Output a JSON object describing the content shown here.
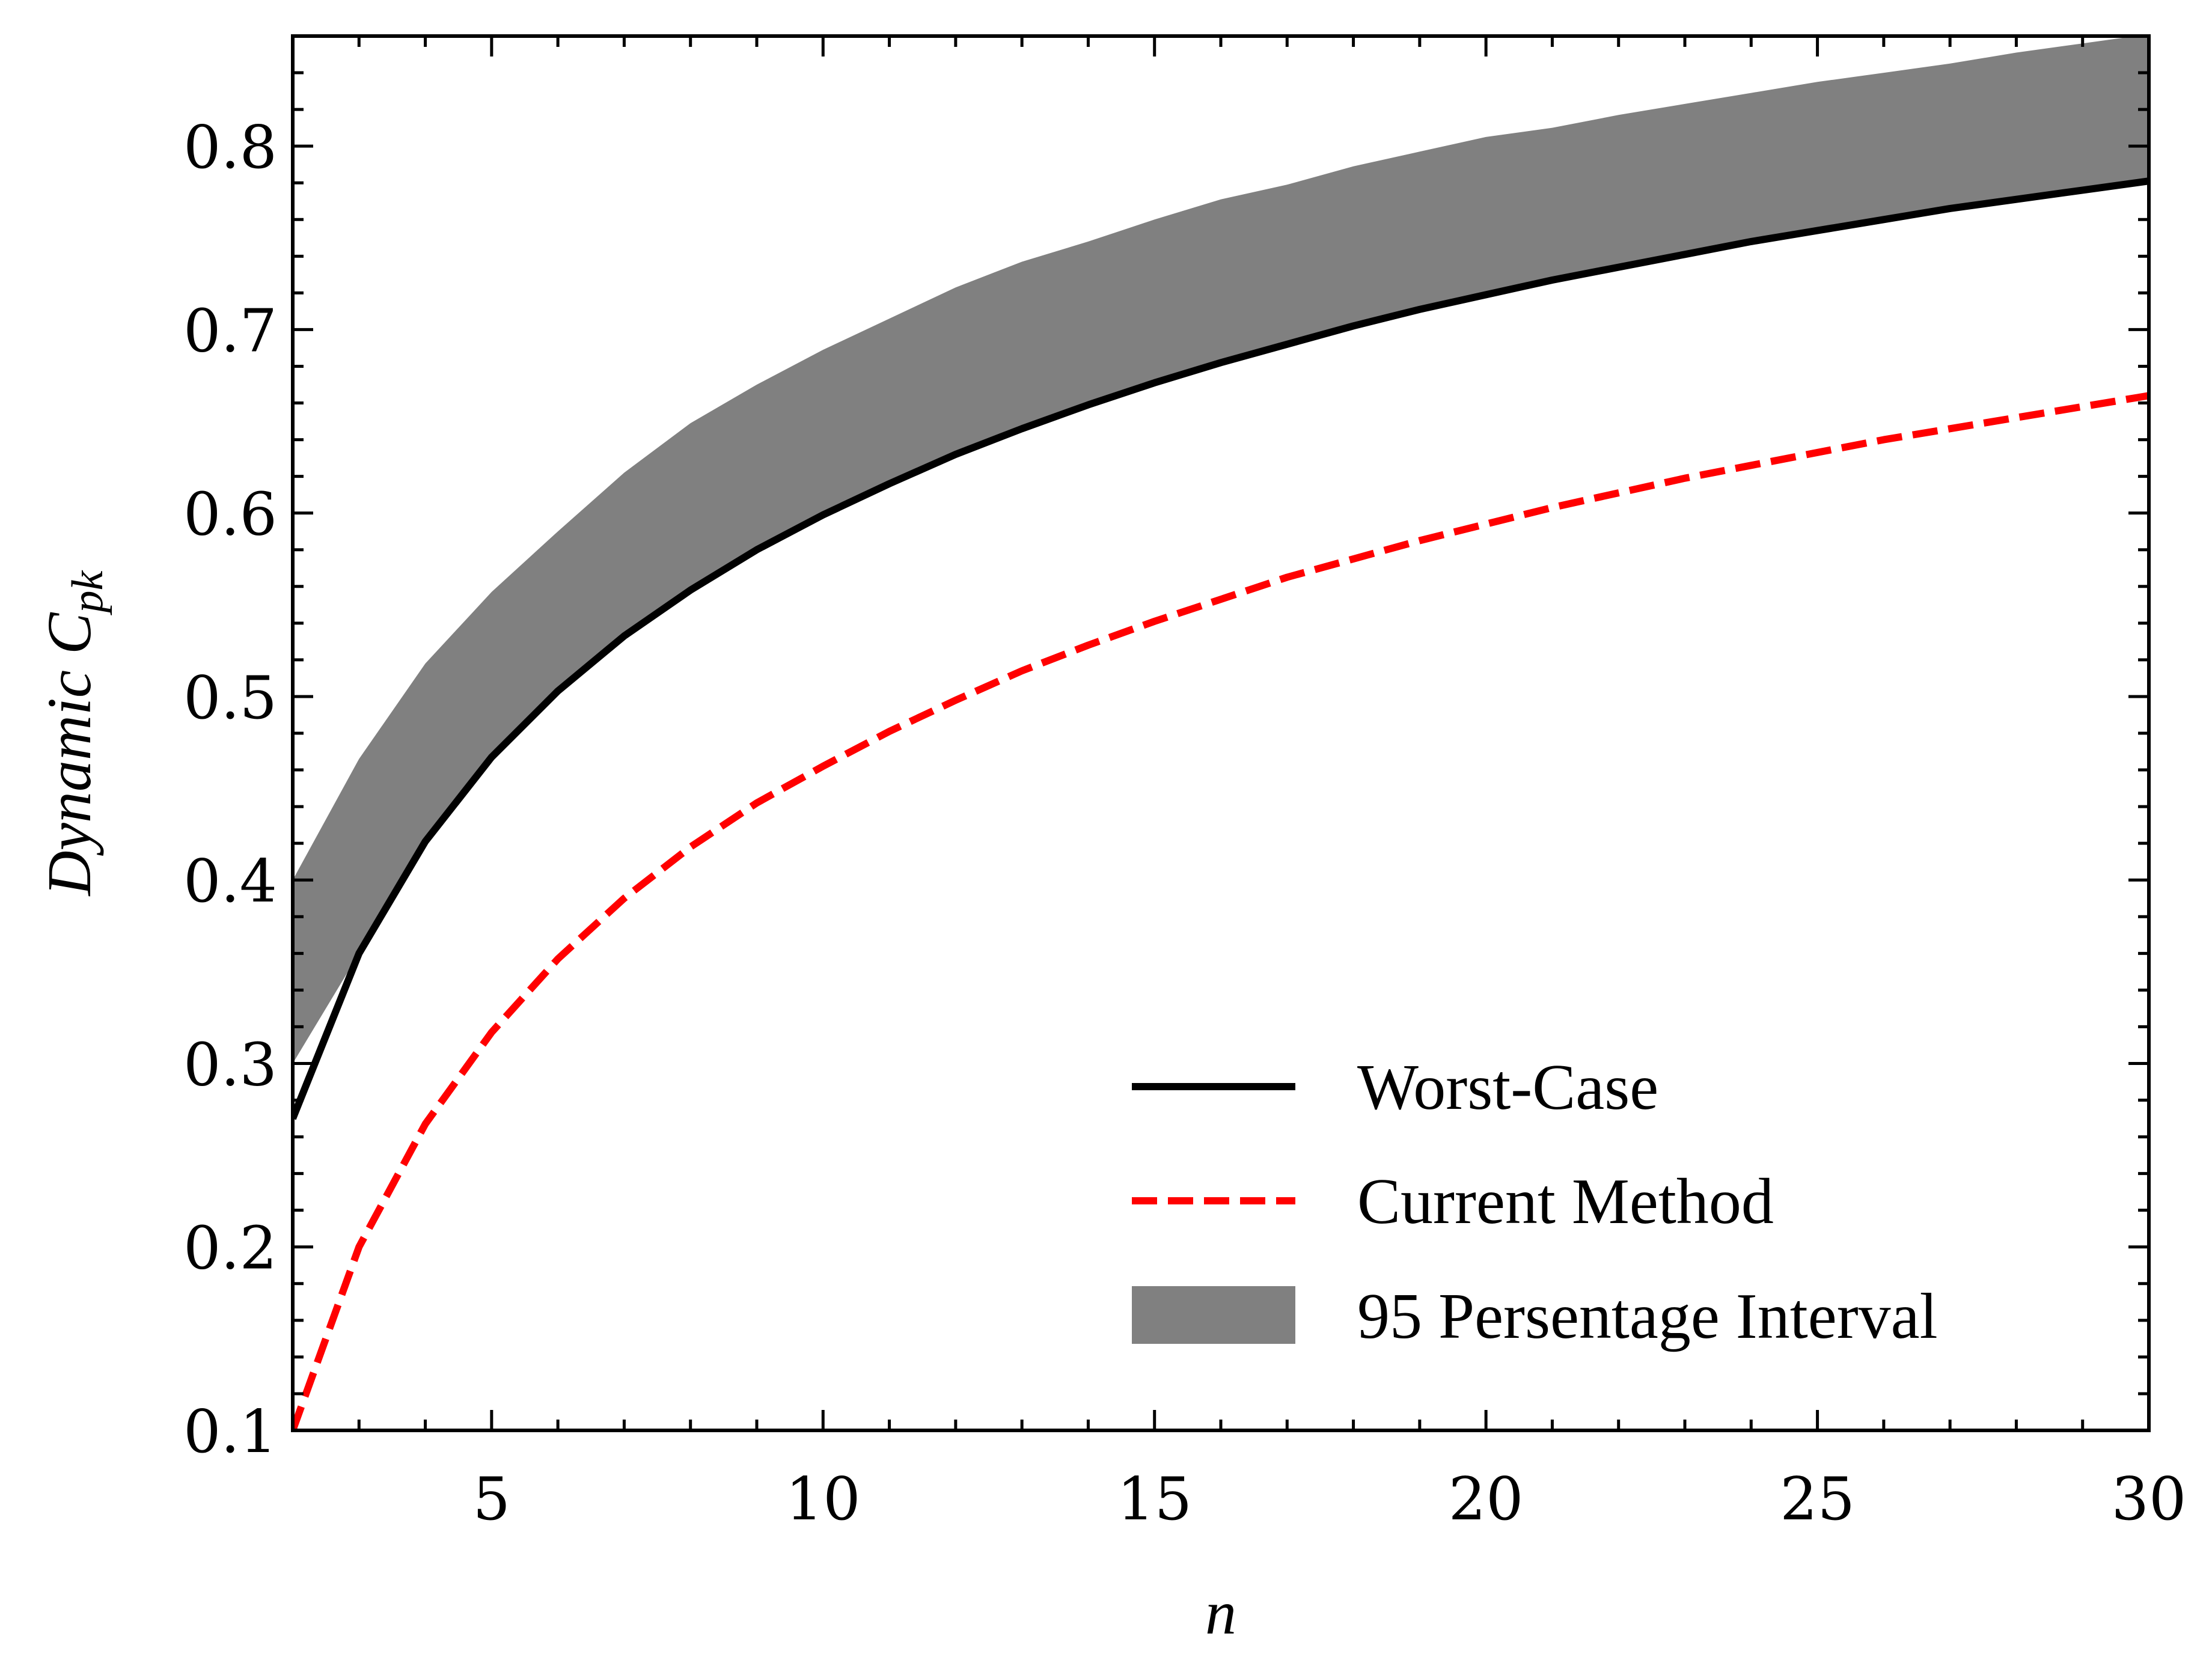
{
  "chart_data": {
    "type": "line",
    "title": "",
    "xlabel": "n",
    "ylabel": {
      "main": "Dynamic C",
      "subscript": "pk"
    },
    "xlim": [
      2,
      30
    ],
    "ylim": [
      0.1,
      0.86
    ],
    "xticks": [
      5,
      10,
      15,
      20,
      25,
      30
    ],
    "xtick_labels": [
      "5",
      "10",
      "15",
      "20",
      "25",
      "30"
    ],
    "yticks": [
      0.1,
      0.2,
      0.3,
      0.4,
      0.5,
      0.6,
      0.7,
      0.8
    ],
    "ytick_labels": [
      "0.1",
      "0.2",
      "0.3",
      "0.4",
      "0.5",
      "0.6",
      "0.7",
      "0.8"
    ],
    "grid": false,
    "legend_position": "bottom-right",
    "x": [
      2,
      3,
      4,
      5,
      6,
      7,
      8,
      9,
      10,
      11,
      12,
      13,
      14,
      15,
      16,
      17,
      18,
      19,
      20,
      21,
      22,
      23,
      24,
      25,
      26,
      27,
      28,
      29,
      30
    ],
    "series": [
      {
        "name": "Worst-Case",
        "style": "solid",
        "color": "#000000",
        "values": [
          0.27,
          0.36,
          0.421,
          0.467,
          0.503,
          0.533,
          0.558,
          0.58,
          0.599,
          0.616,
          0.632,
          0.646,
          0.659,
          0.671,
          0.682,
          0.692,
          0.702,
          0.711,
          0.719,
          0.727,
          0.734,
          0.741,
          0.748,
          0.754,
          0.76,
          0.766,
          0.771,
          0.776,
          0.781
        ]
      },
      {
        "name": "Current Method",
        "style": "dashed",
        "color": "#ff0000",
        "values": [
          0.1,
          0.2,
          0.267,
          0.317,
          0.357,
          0.39,
          0.418,
          0.442,
          0.462,
          0.481,
          0.498,
          0.514,
          0.528,
          0.541,
          0.553,
          0.565,
          0.575,
          0.585,
          0.594,
          0.603,
          0.611,
          0.619,
          0.626,
          0.633,
          0.64,
          0.646,
          0.652,
          0.658,
          0.664
        ]
      }
    ],
    "band": {
      "name": "95 Persentage Interval",
      "color": "#808080",
      "lower": [
        0.3,
        0.36,
        0.421,
        0.467,
        0.503,
        0.533,
        0.558,
        0.58,
        0.599,
        0.616,
        0.632,
        0.646,
        0.659,
        0.671,
        0.682,
        0.692,
        0.702,
        0.711,
        0.719,
        0.727,
        0.734,
        0.741,
        0.748,
        0.754,
        0.76,
        0.766,
        0.771,
        0.776,
        0.781
      ],
      "upper": [
        0.4,
        0.466,
        0.518,
        0.557,
        0.59,
        0.622,
        0.649,
        0.67,
        0.689,
        0.706,
        0.723,
        0.737,
        0.748,
        0.76,
        0.771,
        0.779,
        0.789,
        0.797,
        0.805,
        0.81,
        0.817,
        0.823,
        0.829,
        0.835,
        0.84,
        0.845,
        0.851,
        0.856,
        0.861
      ]
    },
    "legend": [
      {
        "label": "Worst-Case",
        "kind": "line-solid",
        "color": "#000000"
      },
      {
        "label": "Current Method",
        "kind": "line-dashed",
        "color": "#ff0000"
      },
      {
        "label": "95 Persentage Interval",
        "kind": "patch",
        "color": "#808080"
      }
    ]
  }
}
